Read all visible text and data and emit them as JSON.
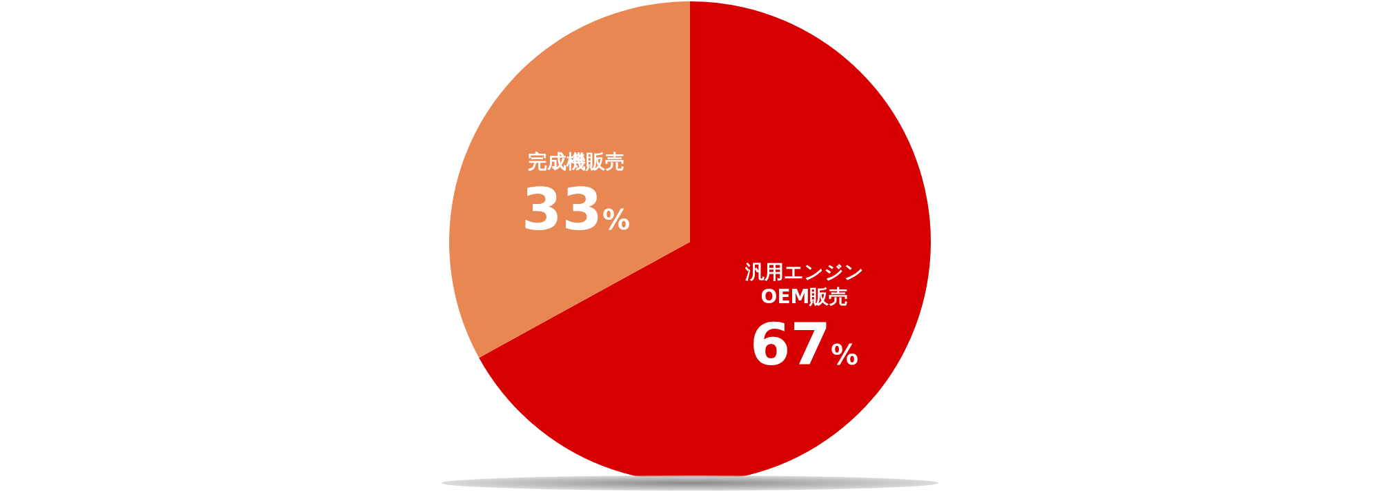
{
  "chart_data": {
    "type": "pie",
    "categories": [
      "汎用エンジン\nOEM販売",
      "完成機販売"
    ],
    "values": [
      67,
      33
    ],
    "colors": [
      "#d70000",
      "#e98752"
    ],
    "value_labels": [
      "67%",
      "33%"
    ],
    "legend": false
  }
}
